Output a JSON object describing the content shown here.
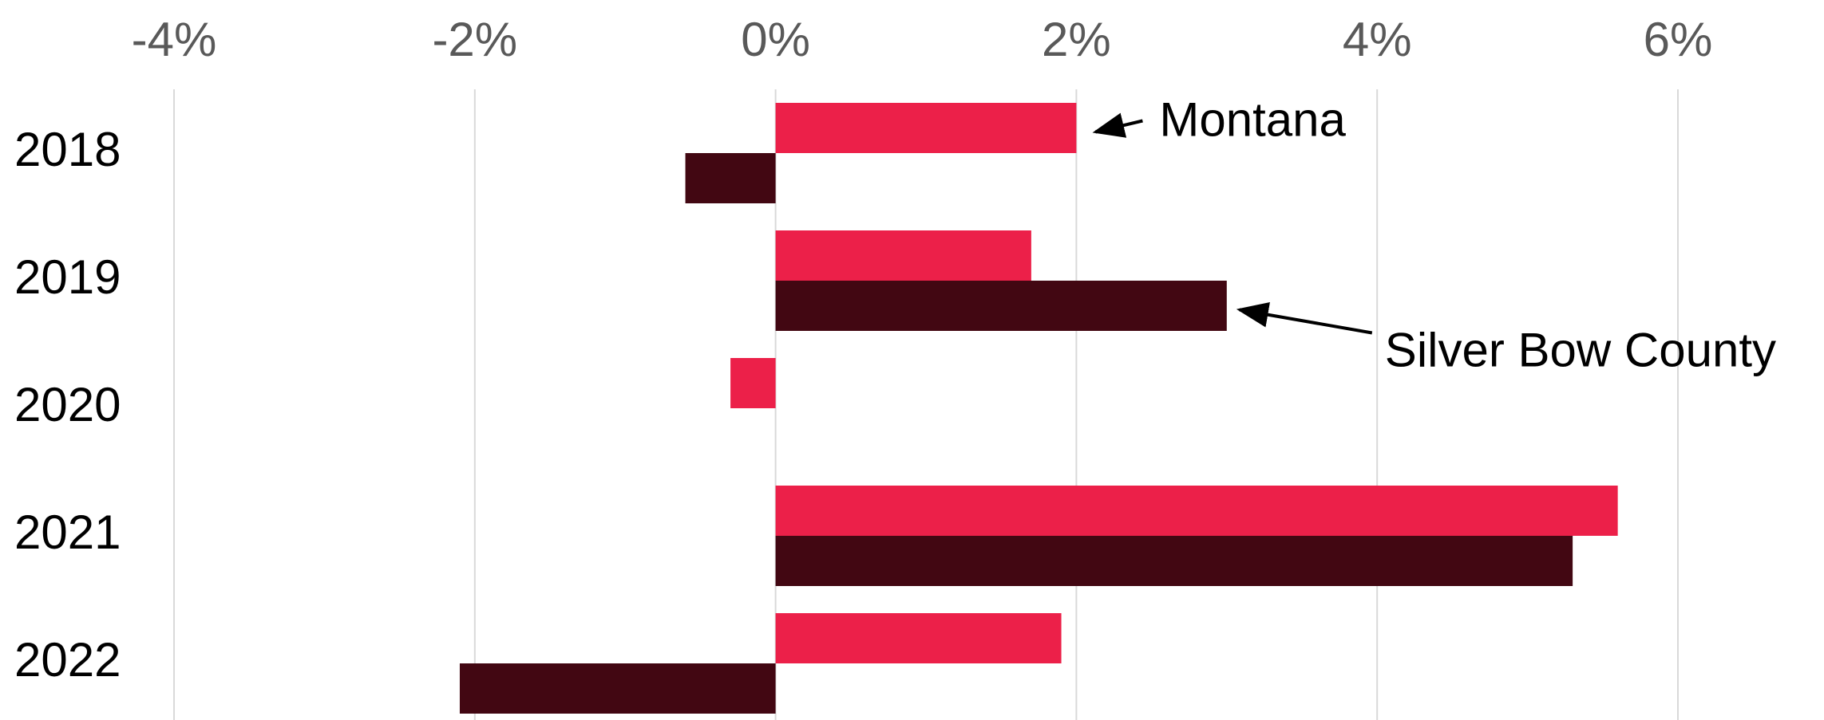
{
  "chart_data": {
    "type": "bar",
    "orientation": "horizontal",
    "categories": [
      "2018",
      "2019",
      "2020",
      "2021",
      "2022"
    ],
    "series": [
      {
        "name": "Montana",
        "values": [
          2.0,
          1.7,
          -0.3,
          5.6,
          1.9
        ],
        "color": "#ec2049"
      },
      {
        "name": "Silver Bow County",
        "values": [
          -0.6,
          3.0,
          0.0,
          5.3,
          -2.1
        ],
        "color": "#420712"
      }
    ],
    "xlim": [
      -4,
      6
    ],
    "xticks": [
      -4,
      -2,
      0,
      2,
      4,
      6
    ],
    "xtick_labels": [
      "-4%",
      "-2%",
      "0%",
      "2%",
      "4%",
      "6%"
    ],
    "x_axis_position": "top",
    "grid": true,
    "legend": "none",
    "annotations": [
      {
        "text": "Montana",
        "target_series": 0,
        "target_category": 0
      },
      {
        "text": "Silver Bow County",
        "target_series": 1,
        "target_category": 1
      }
    ],
    "title": "",
    "xlabel": "",
    "ylabel": ""
  }
}
